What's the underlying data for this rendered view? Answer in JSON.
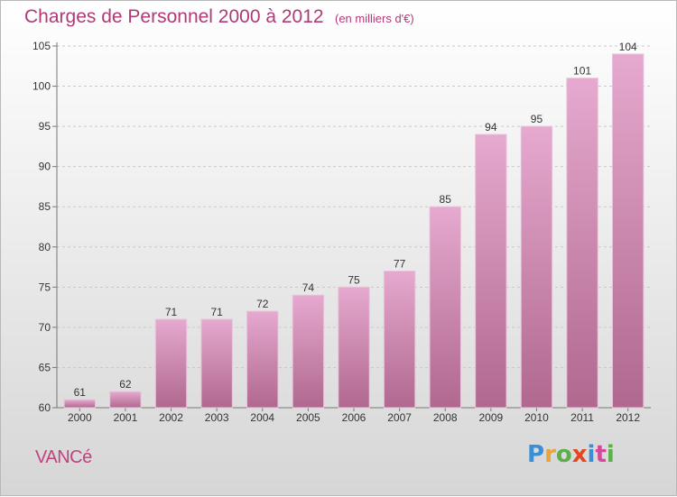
{
  "title": "Charges de Personnel 2000 à 2012",
  "subtitle": "(en milliers d'€)",
  "commune": "VANCé",
  "logo": {
    "text": "Proxiti",
    "letter_colors": [
      "#3b8fd6",
      "#e8a33a",
      "#5bb04a",
      "#e6461f",
      "#3b8fd6",
      "#d34a9a",
      "#5bb04a"
    ]
  },
  "colors": {
    "bar_top": "#e6a9cf",
    "bar_bottom": "#b0688f",
    "accent": "#b03a77"
  },
  "chart_data": {
    "type": "bar",
    "categories": [
      "2000",
      "2001",
      "2002",
      "2003",
      "2004",
      "2005",
      "2006",
      "2007",
      "2008",
      "2009",
      "2010",
      "2011",
      "2012"
    ],
    "values": [
      61,
      62,
      71,
      71,
      72,
      74,
      75,
      77,
      85,
      94,
      95,
      101,
      104
    ],
    "data_labels": [
      "61",
      "62",
      "71",
      "71",
      "72",
      "74",
      "75",
      "77",
      "85",
      "94",
      "95",
      "101",
      "104"
    ],
    "ylim": [
      60,
      105
    ],
    "yticks": [
      60,
      65,
      70,
      75,
      80,
      85,
      90,
      95,
      100,
      105
    ],
    "grid": true,
    "legend": "none"
  }
}
